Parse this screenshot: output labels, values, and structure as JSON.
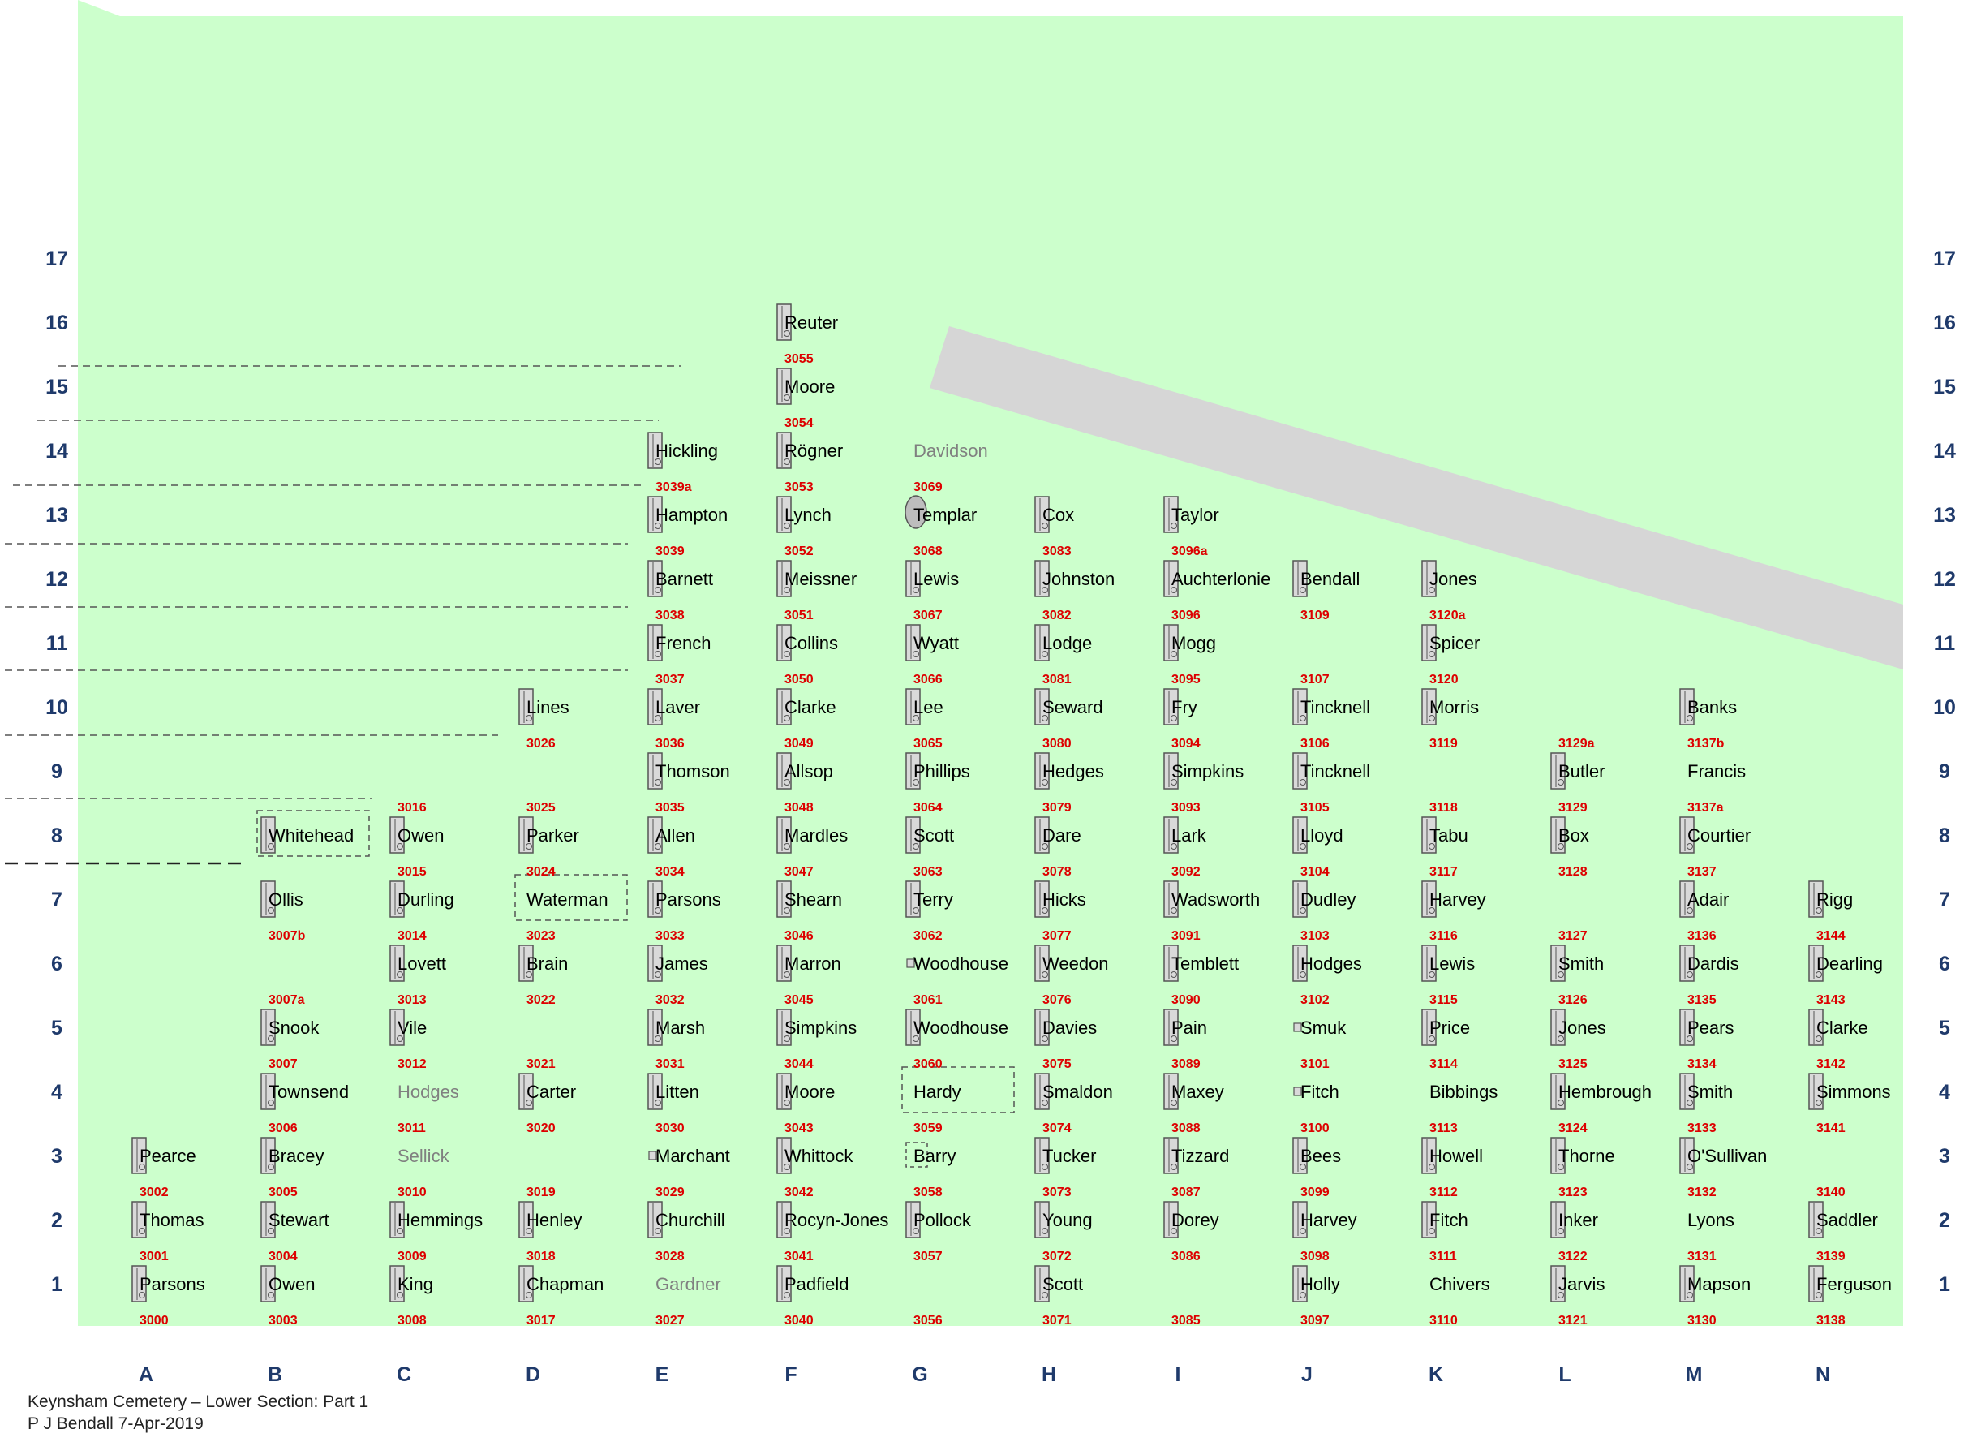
{
  "title": "Keynsham Cemetery – Lower Section: Part 1",
  "author_line": "P J Bendall 7-Apr-2019",
  "colors": {
    "grass": "#ccffcc",
    "path": "#d6d6d6",
    "label": "#000000",
    "faint_label": "#808080",
    "number": "#dd0000",
    "axis": "#1f3a6b",
    "stone_fill": "#d9d9d9",
    "stone_stroke": "#555555"
  },
  "columns": [
    "A",
    "B",
    "C",
    "D",
    "E",
    "F",
    "G",
    "H",
    "I",
    "J",
    "K",
    "L",
    "M",
    "N"
  ],
  "rows": [
    "1",
    "2",
    "3",
    "4",
    "5",
    "6",
    "7",
    "8",
    "9",
    "10",
    "11",
    "12",
    "13",
    "14",
    "15",
    "16",
    "17"
  ],
  "graves": [
    {
      "name": "Parsons",
      "number": "3000",
      "col": "A",
      "row": 1,
      "stone": "l"
    },
    {
      "name": "Thomas",
      "number": "3001",
      "col": "A",
      "row": 2,
      "stone": "l"
    },
    {
      "name": "Pearce",
      "number": "3002",
      "col": "A",
      "row": 3,
      "stone": "l"
    },
    {
      "name": "Owen",
      "number": "3003",
      "col": "B",
      "row": 1,
      "stone": "l"
    },
    {
      "name": "Stewart",
      "number": "3004",
      "col": "B",
      "row": 2,
      "stone": "l"
    },
    {
      "name": "Bracey",
      "number": "3005",
      "col": "B",
      "row": 3,
      "stone": "l"
    },
    {
      "name": "Townsend",
      "number": "3006",
      "col": "B",
      "row": 4,
      "stone": "l"
    },
    {
      "name": "Snook",
      "number": "3007",
      "col": "B",
      "row": 5,
      "stone": "l"
    },
    {
      "name": "",
      "number": "3007a",
      "col": "B",
      "row": 6,
      "stone": "none"
    },
    {
      "name": "Ollis",
      "number": "3007b",
      "col": "B",
      "row": 7,
      "stone": "l"
    },
    {
      "name": "Whitehead",
      "number": "",
      "col": "B",
      "row": 8,
      "stone": "l",
      "dashed": true
    },
    {
      "name": "King",
      "number": "3008",
      "col": "C",
      "row": 1,
      "stone": "l"
    },
    {
      "name": "Hemmings",
      "number": "3009",
      "col": "C",
      "row": 2,
      "stone": "l"
    },
    {
      "name": "Sellick",
      "number": "3010",
      "col": "C",
      "row": 3,
      "stone": "none",
      "faint": true
    },
    {
      "name": "Hodges",
      "number": "3011",
      "col": "C",
      "row": 4,
      "stone": "none",
      "faint": true
    },
    {
      "name": "Vile",
      "number": "3012",
      "col": "C",
      "row": 5,
      "stone": "l"
    },
    {
      "name": "Lovett",
      "number": "3013",
      "col": "C",
      "row": 6,
      "stone": "l"
    },
    {
      "name": "Durling",
      "number": "3014",
      "col": "C",
      "row": 7,
      "stone": "l"
    },
    {
      "name": "Owen",
      "number": "3015",
      "col": "C",
      "row": 8,
      "stone": "l"
    },
    {
      "name": "",
      "number": "3016",
      "col": "C",
      "row": 9,
      "stone": "none"
    },
    {
      "name": "Chapman",
      "number": "3017",
      "col": "D",
      "row": 1,
      "stone": "l"
    },
    {
      "name": "Henley",
      "number": "3018",
      "col": "D",
      "row": 2,
      "stone": "l"
    },
    {
      "name": "",
      "number": "3019",
      "col": "D",
      "row": 3,
      "stone": "none"
    },
    {
      "name": "Carter",
      "number": "3020",
      "col": "D",
      "row": 4,
      "stone": "l"
    },
    {
      "name": "",
      "number": "3021",
      "col": "D",
      "row": 5,
      "stone": "none"
    },
    {
      "name": "Brain",
      "number": "3022",
      "col": "D",
      "row": 6,
      "stone": "l"
    },
    {
      "name": "Waterman",
      "number": "3023",
      "col": "D",
      "row": 7,
      "stone": "none",
      "dashed": true
    },
    {
      "name": "Parker",
      "number": "3024",
      "col": "D",
      "row": 8,
      "stone": "l"
    },
    {
      "name": "",
      "number": "3025",
      "col": "D",
      "row": 9,
      "stone": "none"
    },
    {
      "name": "Lines",
      "number": "3026",
      "col": "D",
      "row": 10,
      "stone": "l"
    },
    {
      "name": "Gardner",
      "number": "3027",
      "col": "E",
      "row": 1,
      "stone": "none",
      "faint": true
    },
    {
      "name": "Churchill",
      "number": "3028",
      "col": "E",
      "row": 2,
      "stone": "l"
    },
    {
      "name": "Marchant",
      "number": "3029",
      "col": "E",
      "row": 3,
      "stone": "s"
    },
    {
      "name": "Litten",
      "number": "3030",
      "col": "E",
      "row": 4,
      "stone": "l"
    },
    {
      "name": "Marsh",
      "number": "3031",
      "col": "E",
      "row": 5,
      "stone": "l"
    },
    {
      "name": "James",
      "number": "3032",
      "col": "E",
      "row": 6,
      "stone": "l"
    },
    {
      "name": "Parsons",
      "number": "3033",
      "col": "E",
      "row": 7,
      "stone": "l"
    },
    {
      "name": "Allen",
      "number": "3034",
      "col": "E",
      "row": 8,
      "stone": "l"
    },
    {
      "name": "Thomson",
      "number": "3035",
      "col": "E",
      "row": 9,
      "stone": "l"
    },
    {
      "name": "Laver",
      "number": "3036",
      "col": "E",
      "row": 10,
      "stone": "l"
    },
    {
      "name": "French",
      "number": "3037",
      "col": "E",
      "row": 11,
      "stone": "l"
    },
    {
      "name": "Barnett",
      "number": "3038",
      "col": "E",
      "row": 12,
      "stone": "l"
    },
    {
      "name": "Hampton",
      "number": "3039",
      "col": "E",
      "row": 13,
      "stone": "l"
    },
    {
      "name": "Hickling",
      "number": "3039a",
      "col": "E",
      "row": 14,
      "stone": "l"
    },
    {
      "name": "Padfield",
      "number": "3040",
      "col": "F",
      "row": 1,
      "stone": "l"
    },
    {
      "name": "Rocyn-Jones",
      "number": "3041",
      "col": "F",
      "row": 2,
      "stone": "l"
    },
    {
      "name": "Whittock",
      "number": "3042",
      "col": "F",
      "row": 3,
      "stone": "l"
    },
    {
      "name": "Moore",
      "number": "3043",
      "col": "F",
      "row": 4,
      "stone": "l"
    },
    {
      "name": "Simpkins",
      "number": "3044",
      "col": "F",
      "row": 5,
      "stone": "l"
    },
    {
      "name": "Marron",
      "number": "3045",
      "col": "F",
      "row": 6,
      "stone": "l"
    },
    {
      "name": "Shearn",
      "number": "3046",
      "col": "F",
      "row": 7,
      "stone": "l"
    },
    {
      "name": "Mardles",
      "number": "3047",
      "col": "F",
      "row": 8,
      "stone": "l"
    },
    {
      "name": "Allsop",
      "number": "3048",
      "col": "F",
      "row": 9,
      "stone": "l"
    },
    {
      "name": "Clarke",
      "number": "3049",
      "col": "F",
      "row": 10,
      "stone": "l"
    },
    {
      "name": "Collins",
      "number": "3050",
      "col": "F",
      "row": 11,
      "stone": "l"
    },
    {
      "name": "Meissner",
      "number": "3051",
      "col": "F",
      "row": 12,
      "stone": "l"
    },
    {
      "name": "Lynch",
      "number": "3052",
      "col": "F",
      "row": 13,
      "stone": "l"
    },
    {
      "name": "Rögner",
      "number": "3053",
      "col": "F",
      "row": 14,
      "stone": "l"
    },
    {
      "name": "Moore",
      "number": "3054",
      "col": "F",
      "row": 15,
      "stone": "l"
    },
    {
      "name": "Reuter",
      "number": "3055",
      "col": "F",
      "row": 16,
      "stone": "l"
    },
    {
      "name": "",
      "number": "3056",
      "col": "G",
      "row": 1,
      "stone": "none"
    },
    {
      "name": "Pollock",
      "number": "3057",
      "col": "G",
      "row": 2,
      "stone": "l"
    },
    {
      "name": "Barry",
      "number": "3058",
      "col": "G",
      "row": 3,
      "stone": "none",
      "dashed_small": true
    },
    {
      "name": "Hardy",
      "number": "3059",
      "col": "G",
      "row": 4,
      "stone": "none",
      "dashed": true
    },
    {
      "name": "Woodhouse",
      "number": "3060",
      "col": "G",
      "row": 5,
      "stone": "l"
    },
    {
      "name": "Woodhouse",
      "number": "3061",
      "col": "G",
      "row": 6,
      "stone": "s"
    },
    {
      "name": "Terry",
      "number": "3062",
      "col": "G",
      "row": 7,
      "stone": "l"
    },
    {
      "name": "Scott",
      "number": "3063",
      "col": "G",
      "row": 8,
      "stone": "l"
    },
    {
      "name": "Phillips",
      "number": "3064",
      "col": "G",
      "row": 9,
      "stone": "l"
    },
    {
      "name": "Lee",
      "number": "3065",
      "col": "G",
      "row": 10,
      "stone": "l"
    },
    {
      "name": "Wyatt",
      "number": "3066",
      "col": "G",
      "row": 11,
      "stone": "l"
    },
    {
      "name": "Lewis",
      "number": "3067",
      "col": "G",
      "row": 12,
      "stone": "l"
    },
    {
      "name": "Templar",
      "number": "3068",
      "col": "G",
      "row": 13,
      "stone": "oval"
    },
    {
      "name": "Davidson",
      "number": "3069",
      "col": "G",
      "row": 14,
      "stone": "none",
      "faint": true
    },
    {
      "name": "Scott",
      "number": "3071",
      "col": "H",
      "row": 1,
      "stone": "l"
    },
    {
      "name": "Young",
      "number": "3072",
      "col": "H",
      "row": 2,
      "stone": "l"
    },
    {
      "name": "Tucker",
      "number": "3073",
      "col": "H",
      "row": 3,
      "stone": "l"
    },
    {
      "name": "Smaldon",
      "number": "3074",
      "col": "H",
      "row": 4,
      "stone": "l"
    },
    {
      "name": "Davies",
      "number": "3075",
      "col": "H",
      "row": 5,
      "stone": "l"
    },
    {
      "name": "Weedon",
      "number": "3076",
      "col": "H",
      "row": 6,
      "stone": "l"
    },
    {
      "name": "Hicks",
      "number": "3077",
      "col": "H",
      "row": 7,
      "stone": "l"
    },
    {
      "name": "Dare",
      "number": "3078",
      "col": "H",
      "row": 8,
      "stone": "l"
    },
    {
      "name": "Hedges",
      "number": "3079",
      "col": "H",
      "row": 9,
      "stone": "l"
    },
    {
      "name": "Seward",
      "number": "3080",
      "col": "H",
      "row": 10,
      "stone": "l"
    },
    {
      "name": "Lodge",
      "number": "3081",
      "col": "H",
      "row": 11,
      "stone": "l"
    },
    {
      "name": "Johnston",
      "number": "3082",
      "col": "H",
      "row": 12,
      "stone": "l"
    },
    {
      "name": "Cox",
      "number": "3083",
      "col": "H",
      "row": 13,
      "stone": "l"
    },
    {
      "name": "",
      "number": "3085",
      "col": "I",
      "row": 1,
      "stone": "none"
    },
    {
      "name": "Dorey",
      "number": "3086",
      "col": "I",
      "row": 2,
      "stone": "l"
    },
    {
      "name": "Tizzard",
      "number": "3087",
      "col": "I",
      "row": 3,
      "stone": "l"
    },
    {
      "name": "Maxey",
      "number": "3088",
      "col": "I",
      "row": 4,
      "stone": "l"
    },
    {
      "name": "Pain",
      "number": "3089",
      "col": "I",
      "row": 5,
      "stone": "l"
    },
    {
      "name": "Temblett",
      "number": "3090",
      "col": "I",
      "row": 6,
      "stone": "l"
    },
    {
      "name": "Wadsworth",
      "number": "3091",
      "col": "I",
      "row": 7,
      "stone": "l"
    },
    {
      "name": "Lark",
      "number": "3092",
      "col": "I",
      "row": 8,
      "stone": "l"
    },
    {
      "name": "Simpkins",
      "number": "3093",
      "col": "I",
      "row": 9,
      "stone": "l"
    },
    {
      "name": "Fry",
      "number": "3094",
      "col": "I",
      "row": 10,
      "stone": "l"
    },
    {
      "name": "Mogg",
      "number": "3095",
      "col": "I",
      "row": 11,
      "stone": "l"
    },
    {
      "name": "Auchterlonie",
      "number": "3096",
      "col": "I",
      "row": 12,
      "stone": "l"
    },
    {
      "name": "Taylor",
      "number": "3096a",
      "col": "I",
      "row": 13,
      "stone": "l"
    },
    {
      "name": "Holly",
      "number": "3097",
      "col": "J",
      "row": 1,
      "stone": "l"
    },
    {
      "name": "Harvey",
      "number": "3098",
      "col": "J",
      "row": 2,
      "stone": "l"
    },
    {
      "name": "Bees",
      "number": "3099",
      "col": "J",
      "row": 3,
      "stone": "l"
    },
    {
      "name": "Fitch",
      "number": "3100",
      "col": "J",
      "row": 4,
      "stone": "s"
    },
    {
      "name": "Smuk",
      "number": "3101",
      "col": "J",
      "row": 5,
      "stone": "s"
    },
    {
      "name": "Hodges",
      "number": "3102",
      "col": "J",
      "row": 6,
      "stone": "l"
    },
    {
      "name": "Dudley",
      "number": "3103",
      "col": "J",
      "row": 7,
      "stone": "l"
    },
    {
      "name": "Lloyd",
      "number": "3104",
      "col": "J",
      "row": 8,
      "stone": "l"
    },
    {
      "name": "Tincknell",
      "number": "3105",
      "col": "J",
      "row": 9,
      "stone": "l"
    },
    {
      "name": "Tincknell",
      "number": "3106",
      "col": "J",
      "row": 10,
      "stone": "l"
    },
    {
      "name": "",
      "number": "3107",
      "col": "J",
      "row": 11,
      "stone": "none"
    },
    {
      "name": "Bendall",
      "number": "3109",
      "col": "J",
      "row": 12,
      "stone": "l"
    },
    {
      "name": "Chivers",
      "number": "3110",
      "col": "K",
      "row": 1,
      "stone": "none"
    },
    {
      "name": "Fitch",
      "number": "3111",
      "col": "K",
      "row": 2,
      "stone": "l"
    },
    {
      "name": "Howell",
      "number": "3112",
      "col": "K",
      "row": 3,
      "stone": "l"
    },
    {
      "name": "Bibbings",
      "number": "3113",
      "col": "K",
      "row": 4,
      "stone": "none"
    },
    {
      "name": "Price",
      "number": "3114",
      "col": "K",
      "row": 5,
      "stone": "l"
    },
    {
      "name": "Lewis",
      "number": "3115",
      "col": "K",
      "row": 6,
      "stone": "l"
    },
    {
      "name": "Harvey",
      "number": "3116",
      "col": "K",
      "row": 7,
      "stone": "l"
    },
    {
      "name": "Tabu",
      "number": "3117",
      "col": "K",
      "row": 8,
      "stone": "l"
    },
    {
      "name": "",
      "number": "3118",
      "col": "K",
      "row": 9,
      "stone": "none"
    },
    {
      "name": "Morris",
      "number": "3119",
      "col": "K",
      "row": 10,
      "stone": "l"
    },
    {
      "name": "Spicer",
      "number": "3120",
      "col": "K",
      "row": 11,
      "stone": "l"
    },
    {
      "name": "Jones",
      "number": "3120a",
      "col": "K",
      "row": 12,
      "stone": "l"
    },
    {
      "name": "Jarvis",
      "number": "3121",
      "col": "L",
      "row": 1,
      "stone": "l"
    },
    {
      "name": "Inker",
      "number": "3122",
      "col": "L",
      "row": 2,
      "stone": "l"
    },
    {
      "name": "Thorne",
      "number": "3123",
      "col": "L",
      "row": 3,
      "stone": "l"
    },
    {
      "name": "Hembrough",
      "number": "3124",
      "col": "L",
      "row": 4,
      "stone": "l"
    },
    {
      "name": "Jones",
      "number": "3125",
      "col": "L",
      "row": 5,
      "stone": "l"
    },
    {
      "name": "Smith",
      "number": "3126",
      "col": "L",
      "row": 6,
      "stone": "l"
    },
    {
      "name": "",
      "number": "3127",
      "col": "L",
      "row": 7,
      "stone": "none"
    },
    {
      "name": "Box",
      "number": "3128",
      "col": "L",
      "row": 8,
      "stone": "l"
    },
    {
      "name": "Butler",
      "number": "3129",
      "col": "L",
      "row": 9,
      "stone": "l"
    },
    {
      "name": "",
      "number": "3129a",
      "col": "L",
      "row": 10,
      "stone": "none"
    },
    {
      "name": "Mapson",
      "number": "3130",
      "col": "M",
      "row": 1,
      "stone": "l"
    },
    {
      "name": "Lyons",
      "number": "3131",
      "col": "M",
      "row": 2,
      "stone": "none"
    },
    {
      "name": "O'Sullivan",
      "number": "3132",
      "col": "M",
      "row": 3,
      "stone": "l"
    },
    {
      "name": "Smith",
      "number": "3133",
      "col": "M",
      "row": 4,
      "stone": "l"
    },
    {
      "name": "Pears",
      "number": "3134",
      "col": "M",
      "row": 5,
      "stone": "l"
    },
    {
      "name": "Dardis",
      "number": "3135",
      "col": "M",
      "row": 6,
      "stone": "l"
    },
    {
      "name": "Adair",
      "number": "3136",
      "col": "M",
      "row": 7,
      "stone": "l"
    },
    {
      "name": "Courtier",
      "number": "3137",
      "col": "M",
      "row": 8,
      "stone": "l"
    },
    {
      "name": "Francis",
      "number": "3137a",
      "col": "M",
      "row": 9,
      "stone": "none"
    },
    {
      "name": "Banks",
      "number": "3137b",
      "col": "M",
      "row": 10,
      "stone": "l"
    },
    {
      "name": "Ferguson",
      "number": "3138",
      "col": "N",
      "row": 1,
      "stone": "l"
    },
    {
      "name": "Saddler",
      "number": "3139",
      "col": "N",
      "row": 2,
      "stone": "l"
    },
    {
      "name": "",
      "number": "3140",
      "col": "N",
      "row": 3,
      "stone": "none"
    },
    {
      "name": "Simmons",
      "number": "3141",
      "col": "N",
      "row": 4,
      "stone": "l"
    },
    {
      "name": "Clarke",
      "number": "3142",
      "col": "N",
      "row": 5,
      "stone": "l"
    },
    {
      "name": "Dearling",
      "number": "3143",
      "col": "N",
      "row": 6,
      "stone": "l"
    },
    {
      "name": "Rigg",
      "number": "3144",
      "col": "N",
      "row": 7,
      "stone": "l"
    }
  ]
}
